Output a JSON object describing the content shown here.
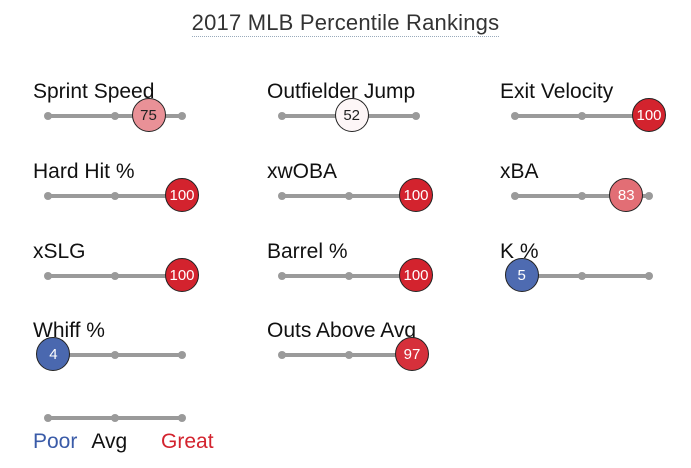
{
  "title": "2017 MLB Percentile Rankings",
  "colors": {
    "poor": "#3a5ba8",
    "great": "#d3232e",
    "track": "#9a9a9a"
  },
  "metrics": [
    {
      "label": "Sprint Speed",
      "percentile": 75
    },
    {
      "label": "Outfielder Jump",
      "percentile": 52
    },
    {
      "label": "Exit Velocity",
      "percentile": 100
    },
    {
      "label": "Hard Hit %",
      "percentile": 100
    },
    {
      "label": "xwOBA",
      "percentile": 100
    },
    {
      "label": "xBA",
      "percentile": 83
    },
    {
      "label": "xSLG",
      "percentile": 100
    },
    {
      "label": "Barrel %",
      "percentile": 100
    },
    {
      "label": "K %",
      "percentile": 5
    },
    {
      "label": "Whiff %",
      "percentile": 4
    },
    {
      "label": "Outs Above Avg",
      "percentile": 97
    }
  ],
  "legend": {
    "poor": "Poor",
    "avg": "Avg",
    "great": "Great"
  }
}
